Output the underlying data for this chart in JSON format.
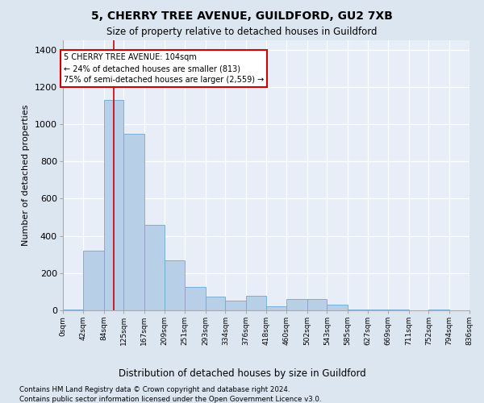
{
  "title1": "5, CHERRY TREE AVENUE, GUILDFORD, GU2 7XB",
  "title2": "Size of property relative to detached houses in Guildford",
  "xlabel": "Distribution of detached houses by size in Guildford",
  "ylabel": "Number of detached properties",
  "footnote1": "Contains HM Land Registry data © Crown copyright and database right 2024.",
  "footnote2": "Contains public sector information licensed under the Open Government Licence v3.0.",
  "bin_edges": [
    0,
    42,
    84,
    125,
    167,
    209,
    251,
    293,
    334,
    376,
    418,
    460,
    502,
    543,
    585,
    627,
    669,
    711,
    752,
    794,
    836
  ],
  "bin_labels": [
    "0sqm",
    "42sqm",
    "84sqm",
    "125sqm",
    "167sqm",
    "209sqm",
    "251sqm",
    "293sqm",
    "334sqm",
    "376sqm",
    "418sqm",
    "460sqm",
    "502sqm",
    "543sqm",
    "585sqm",
    "627sqm",
    "669sqm",
    "711sqm",
    "752sqm",
    "794sqm",
    "836sqm"
  ],
  "counts": [
    5,
    320,
    1130,
    950,
    460,
    270,
    125,
    75,
    50,
    80,
    20,
    60,
    60,
    30,
    5,
    5,
    5,
    0,
    5,
    0
  ],
  "bar_color": "#b8cfe8",
  "bar_edgecolor": "#6fa8d0",
  "property_sqm": 104,
  "property_line_color": "#cc0000",
  "annotation_box_color": "#cc0000",
  "annotation_text1": "5 CHERRY TREE AVENUE: 104sqm",
  "annotation_text2": "← 24% of detached houses are smaller (813)",
  "annotation_text3": "75% of semi-detached houses are larger (2,559) →",
  "ylim": [
    0,
    1450
  ],
  "yticks": [
    0,
    200,
    400,
    600,
    800,
    1000,
    1200,
    1400
  ],
  "bg_color": "#dce6f0",
  "plot_bg_color": "#e8eef7"
}
